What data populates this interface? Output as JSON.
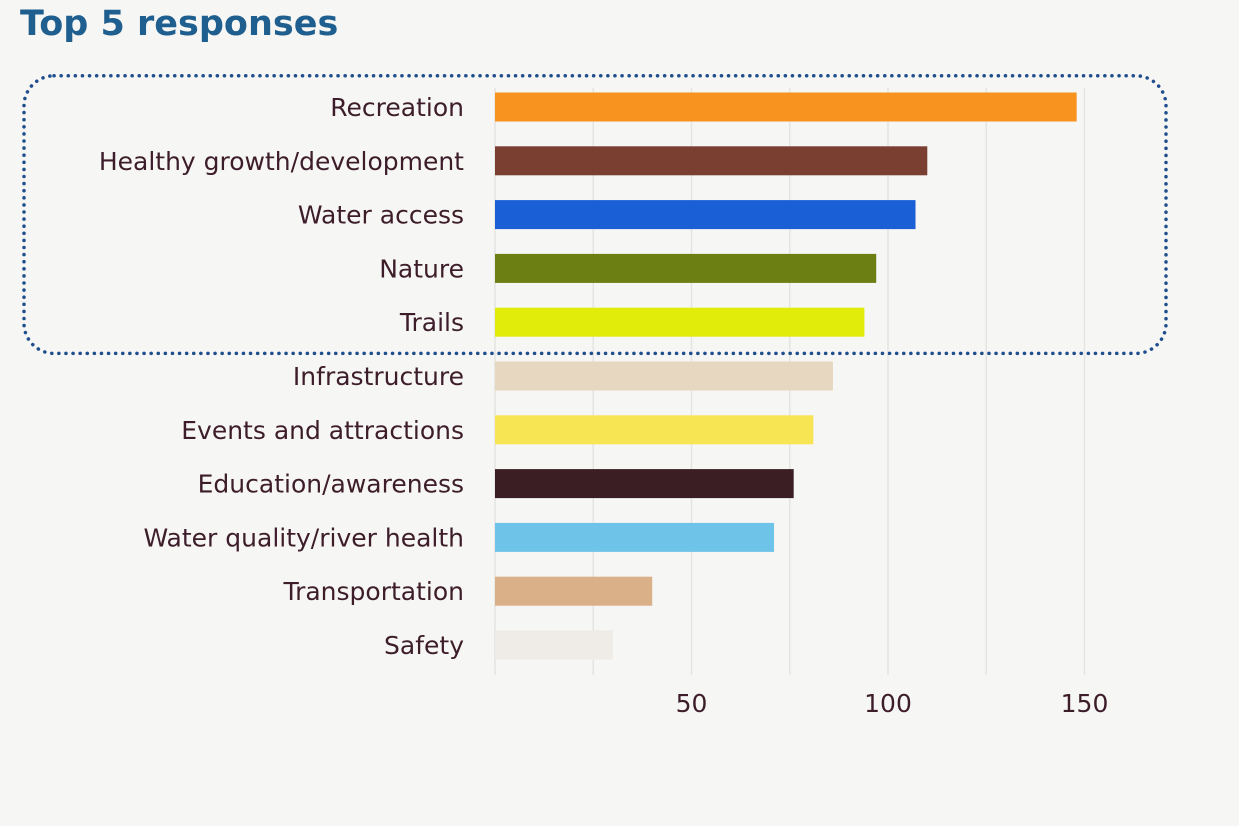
{
  "chart_data": {
    "type": "bar",
    "orientation": "horizontal",
    "title": "Top 5 responses",
    "categories": [
      "Recreation",
      "Healthy growth/development",
      "Water access",
      "Nature",
      "Trails",
      "Infrastructure",
      "Events and attractions",
      "Education/awareness",
      "Water quality/river health",
      "Transportation",
      "Safety"
    ],
    "values": [
      148,
      110,
      107,
      97,
      94,
      86,
      81,
      76,
      71,
      40,
      30
    ],
    "colors": [
      "#f7931e",
      "#7b3f32",
      "#1a5fd6",
      "#6b7f12",
      "#e2ec0a",
      "#e8d7c0",
      "#f8e554",
      "#3b1e24",
      "#6ec3e8",
      "#d9b088",
      "#efebe6"
    ],
    "xticks": [
      50,
      100,
      150
    ],
    "xlim": [
      0,
      165
    ],
    "grid": true,
    "highlight": {
      "style": "dotted-box",
      "color": "#1f4e8c",
      "categories_count": 5
    }
  }
}
